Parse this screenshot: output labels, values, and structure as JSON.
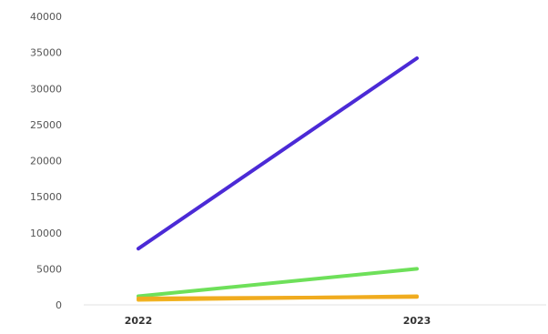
{
  "chart_data": {
    "type": "line",
    "title": "",
    "xlabel": "",
    "ylabel": "",
    "categories": [
      "2022",
      "2023"
    ],
    "ylim": [
      0,
      40000
    ],
    "yticks": [
      0,
      5000,
      10000,
      15000,
      20000,
      25000,
      30000,
      35000,
      40000
    ],
    "ytick_labels": [
      "0",
      "5000",
      "10000",
      "15000",
      "20000",
      "25000",
      "30000",
      "35000",
      "40000"
    ],
    "grid": false,
    "legend": "none",
    "series": [
      {
        "color": "#4b2ad6",
        "values": [
          7800,
          34200
        ]
      },
      {
        "color": "#6ee05a",
        "values": [
          1200,
          5000
        ]
      },
      {
        "color": "#f2b624",
        "values": [
          700,
          1200
        ]
      },
      {
        "color": "#f0ab1f",
        "values": [
          900,
          1100
        ]
      }
    ]
  }
}
